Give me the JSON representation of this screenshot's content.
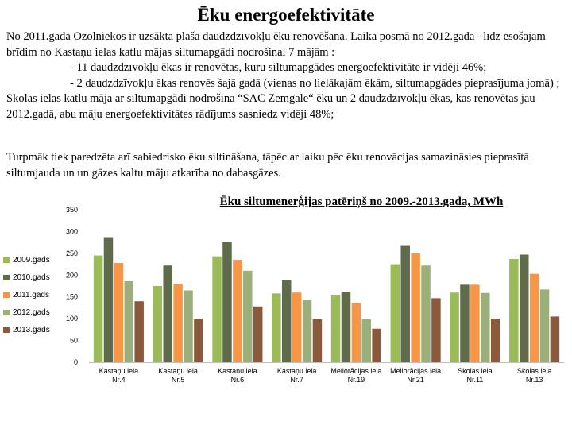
{
  "page_title": "Ēku energoefektivitāte",
  "intro": {
    "line1": "No 2011.gada Ozolniekos ir uzsākta plaša daudzdzīvokļu ēku renovēšana. Laika posmā no 2012.gada –līdz esošajam brīdim no Kastaņu ielas katlu mājas siltumapgādi nodrošinal 7 mājām :",
    "bullet1": "- 11 daudzdzīvokļu ēkas ir renovētas, kuru siltumapgādes energoefektivitāte ir vidēji 46%;",
    "bullet2": "- 2 daudzdzīvokļu ēkas renovēs šajā gadā (vienas no lielākajām ēkām, siltumapgādes pieprasījuma jomā) ;",
    "line2": "Skolas ielas katlu māja ar siltumapgādi nodrošina “SAC  Zemgale“ ēku un 2 daudzdzīvokļu ēkas, kas renovētas  jau 2012.gadā, abu māju energoefektivitātes rādījums sasniedz vidēji 48%;"
  },
  "outlook": "Turpmāk tiek paredzēta arī sabiedrisko ēku siltināšana, tāpēc ar laiku  pēc ēku renovācijas samazināsies pieprasītā siltumjauda un  un gāzes kaltu māju atkarība no dabasgāzes.",
  "chart_data": {
    "type": "bar",
    "title": "Ēku siltumenerģijas patēriņš no 2009.-2013.gada, MWh",
    "categories": [
      "Kastaņu iela Nr.4",
      "Kastaņu iela Nr.5",
      "Kastaņu  iela Nr.6",
      "Kastaņu  iela Nr.7",
      "Meliorācijas iela Nr.19",
      "Meliorācijas iela Nr.21",
      "Skolas  iela Nr.11",
      "Skolas  iela Nr.13"
    ],
    "series": [
      {
        "name": "2009.gads",
        "color": "#9bbb59",
        "values": [
          245,
          175,
          243,
          158,
          155,
          225,
          160,
          237
        ]
      },
      {
        "name": "2010.gads",
        "color": "#5f6b4a",
        "values": [
          287,
          222,
          277,
          188,
          162,
          267,
          178,
          247
        ]
      },
      {
        "name": "2011.gads",
        "color": "#f79646",
        "values": [
          228,
          180,
          235,
          160,
          136,
          250,
          178,
          203
        ]
      },
      {
        "name": "2012.gads",
        "color": "#9aaf7a",
        "values": [
          186,
          165,
          210,
          144,
          99,
          222,
          159,
          167
        ]
      },
      {
        "name": "2013.gads",
        "color": "#8b5a3c",
        "values": [
          140,
          99,
          128,
          99,
          77,
          147,
          100,
          105
        ]
      }
    ],
    "ylim": [
      0,
      350
    ],
    "yticks": [
      0,
      50,
      100,
      150,
      200,
      250,
      300,
      350
    ],
    "xlabel": "",
    "ylabel": "",
    "legend": "left"
  }
}
